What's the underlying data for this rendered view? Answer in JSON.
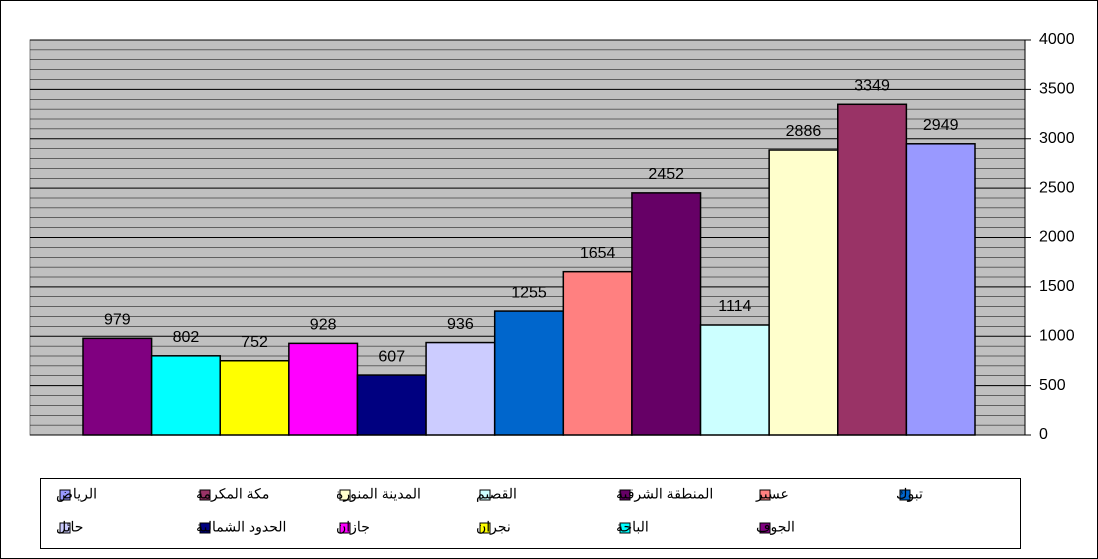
{
  "chart_data": {
    "type": "bar",
    "series": [
      {
        "name": "الجوف",
        "color": "#800080",
        "values": [
          979
        ]
      },
      {
        "name": "الباحة",
        "color": "#00ffff",
        "values": [
          802
        ]
      },
      {
        "name": "نجران",
        "color": "#ffff00",
        "values": [
          752
        ]
      },
      {
        "name": "جازان",
        "color": "#ff00ff",
        "values": [
          928
        ]
      },
      {
        "name": "الحدود الشمالية",
        "color": "#000080",
        "values": [
          607
        ]
      },
      {
        "name": "حائل",
        "color": "#ccccff",
        "values": [
          936
        ]
      },
      {
        "name": "تبوك",
        "color": "#0066cc",
        "values": [
          1255
        ]
      },
      {
        "name": "عسير",
        "color": "#ff8080",
        "values": [
          1654
        ]
      },
      {
        "name": "المنطقة الشرقية",
        "color": "#660066",
        "values": [
          2452
        ]
      },
      {
        "name": "القصيم",
        "color": "#ccffff",
        "values": [
          1114
        ]
      },
      {
        "name": "المدينة المنورة",
        "color": "#ffffcc",
        "values": [
          2886
        ]
      },
      {
        "name": "مكة المكرمة",
        "color": "#993366",
        "values": [
          3349
        ]
      },
      {
        "name": "الرياض",
        "color": "#9999ff",
        "values": [
          2949
        ]
      }
    ],
    "ylim": [
      0,
      4000
    ],
    "yticks": [
      0,
      500,
      1000,
      1500,
      2000,
      2500,
      3000,
      3500,
      4000
    ],
    "grid": true,
    "minor_grid": 100,
    "legend": "bottom"
  }
}
